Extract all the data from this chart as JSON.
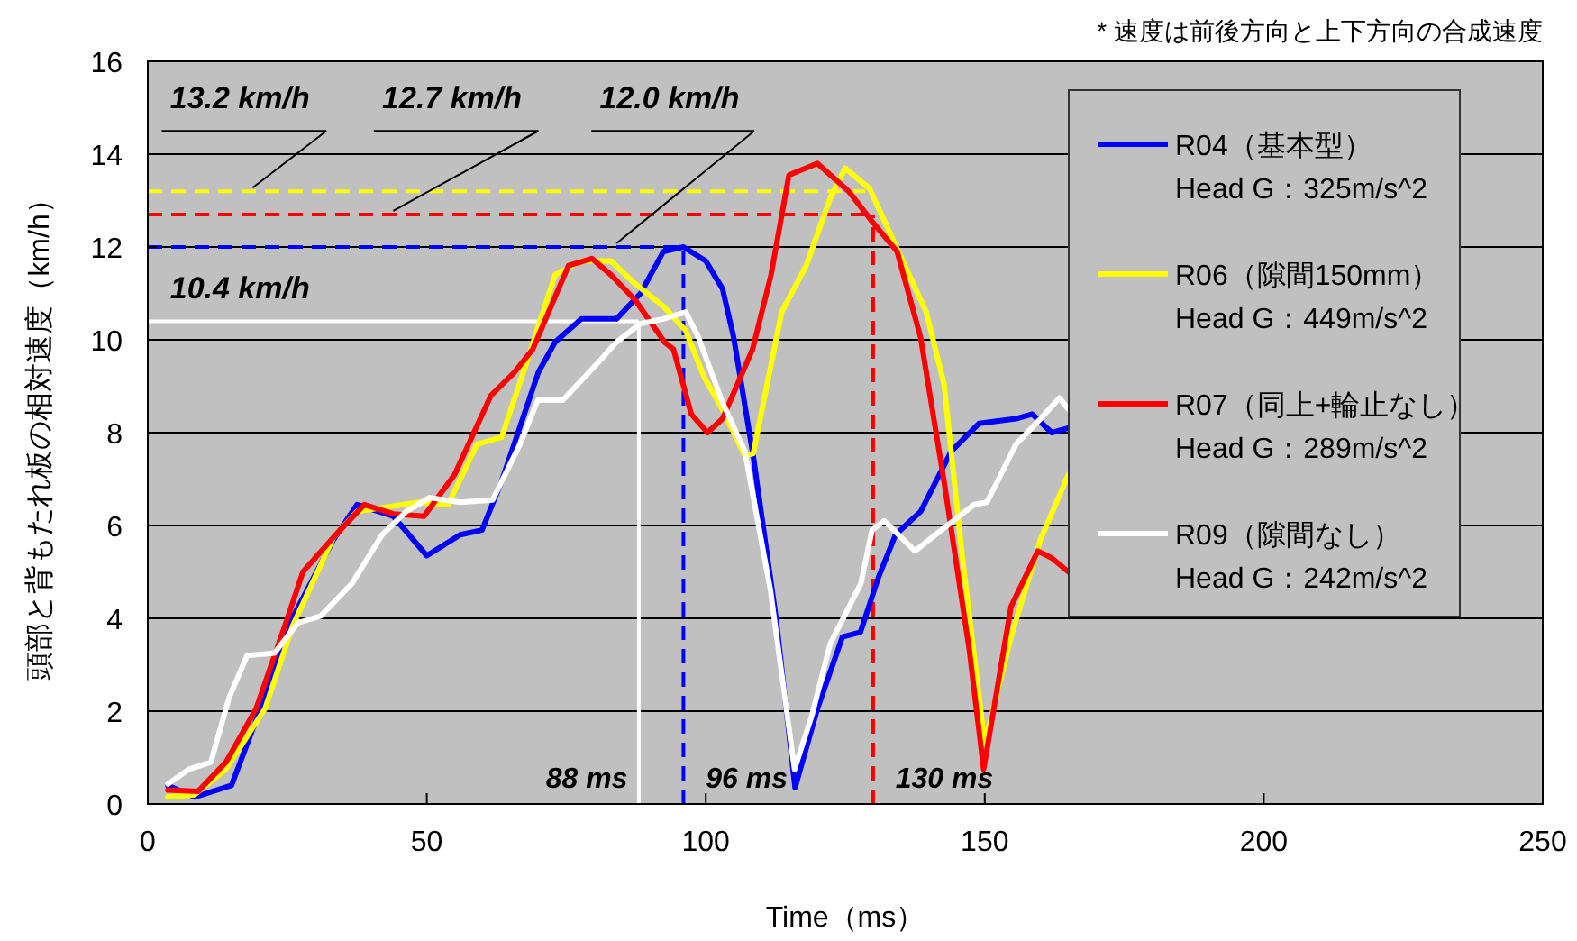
{
  "chart_data": {
    "type": "line",
    "xlabel": "Time（ms）",
    "ylabel": "頭部と背もたれ板の相対速度（km/h）",
    "xlim": [
      0,
      250
    ],
    "xticks": [
      0,
      50,
      100,
      150,
      200,
      250
    ],
    "ylim": [
      0,
      16
    ],
    "yticks": [
      0,
      2,
      4,
      6,
      8,
      10,
      12,
      14,
      16
    ],
    "grid": "y",
    "legend": "top right",
    "line_style": "solid",
    "marker": "none",
    "annotations": [
      "* 速度は前後方向と上下方向の合成速度"
    ],
    "ref_lines": [
      {
        "axis": "y",
        "value": 13.2,
        "label": "13.2 km/h",
        "color": "#ffff00",
        "line_style": "dashed"
      },
      {
        "axis": "y",
        "value": 12.7,
        "label": "12.7 km/h",
        "color": "#ff0000",
        "line_style": "dashed"
      },
      {
        "axis": "y",
        "value": 12.0,
        "label": "12.0 km/h",
        "color": "#0000ff",
        "line_style": "dashed"
      },
      {
        "axis": "y",
        "value": 10.4,
        "label": "10.4 km/h",
        "color": "#ffffff",
        "line_style": "solid"
      },
      {
        "axis": "x",
        "value": 88,
        "label": "88 ms",
        "color": "#ffffff",
        "line_style": "solid"
      },
      {
        "axis": "x",
        "value": 96,
        "label": "96 ms",
        "color": "#0000ff",
        "line_style": "dashed"
      },
      {
        "axis": "x",
        "value": 130,
        "label": "130 ms",
        "color": "#ff0000",
        "line_style": "dashed"
      }
    ],
    "series": [
      {
        "name": "R04（基本型）\nHead G：325m/s^2",
        "color": "#0000ff",
        "x": [
          3.6,
          8.4,
          15,
          19.4,
          25.9,
          33.3,
          37.5,
          44,
          50,
          56,
          59.9,
          63.4,
          70,
          73,
          77.7,
          84,
          88.3,
          92.4,
          96,
          100,
          103,
          105,
          108.5,
          112.6,
          116,
          120,
          124.5,
          127.7,
          131,
          134,
          138.5,
          144,
          149,
          155.6,
          158.5,
          162,
          165
        ],
        "values": [
          0.4,
          0.15,
          0.4,
          1.8,
          4.0,
          5.7,
          6.45,
          6.2,
          5.35,
          5.8,
          5.9,
          6.95,
          9.3,
          9.95,
          10.45,
          10.45,
          11.0,
          11.9,
          12.0,
          11.7,
          11.1,
          10.05,
          7.5,
          4.0,
          0.35,
          2.05,
          3.6,
          3.7,
          4.9,
          5.8,
          6.3,
          7.6,
          8.2,
          8.3,
          8.4,
          8.0,
          8.1
        ]
      },
      {
        "name": "R06（隙間150mm）\nHead G：449m/s^2",
        "color": "#ffff00",
        "x": [
          3.6,
          8.4,
          14,
          21,
          26,
          33.3,
          37.5,
          43,
          48.5,
          53.8,
          59,
          63.4,
          68,
          73,
          77.7,
          83,
          87.4,
          92.6,
          96.4,
          99.7,
          103,
          107,
          108.5,
          113.6,
          118,
          122.3,
          125,
          129.4,
          133,
          139.5,
          142.7,
          146,
          150,
          154.7,
          160,
          165
        ],
        "values": [
          0.15,
          0.2,
          0.75,
          2.05,
          3.85,
          5.75,
          6.3,
          6.4,
          6.5,
          6.45,
          7.75,
          7.9,
          9.55,
          11.4,
          11.7,
          11.7,
          11.2,
          10.7,
          10.2,
          9.2,
          8.5,
          7.5,
          7.55,
          10.6,
          11.6,
          13.05,
          13.7,
          13.25,
          12.3,
          10.6,
          9.05,
          5.3,
          1.3,
          3.6,
          5.7,
          7.1
        ]
      },
      {
        "name": "R07（同上+輪止なし）\nHead G：289m/s^2",
        "color": "#ff0000",
        "x": [
          3.6,
          9,
          14,
          19.4,
          24.6,
          27.8,
          33.3,
          38.8,
          44,
          49.5,
          55,
          61.5,
          65.7,
          69,
          75.4,
          79.6,
          83,
          87.4,
          92.6,
          94.2,
          97.4,
          100.3,
          103,
          108.4,
          111.7,
          114.9,
          120,
          125.6,
          129.8,
          134.3,
          138.5,
          142.7,
          147.2,
          149.8,
          154.7,
          159.5,
          162,
          165
        ],
        "values": [
          0.3,
          0.27,
          0.9,
          2.05,
          3.85,
          5.0,
          5.75,
          6.45,
          6.25,
          6.2,
          7.1,
          8.8,
          9.3,
          9.8,
          11.6,
          11.75,
          11.4,
          10.85,
          9.95,
          9.8,
          8.4,
          8.0,
          8.3,
          9.8,
          11.4,
          13.55,
          13.8,
          13.2,
          12.55,
          11.9,
          10.05,
          6.95,
          3.35,
          0.75,
          4.25,
          5.45,
          5.3,
          5.0
        ]
      },
      {
        "name": "R09（隙間なし）\nHead G：242m/s^2",
        "color": "#ffffff",
        "x": [
          3.6,
          7.4,
          11.3,
          14.6,
          17.8,
          22.7,
          26.9,
          31,
          36.6,
          42,
          46.3,
          50.5,
          56,
          61.8,
          66.7,
          69.9,
          74.4,
          81,
          84,
          88.3,
          92.4,
          96.4,
          98.7,
          103,
          107,
          111.6,
          115.9,
          119,
          122.3,
          127.8,
          129.8,
          132,
          137.5,
          141.7,
          148.1,
          150.4,
          155.6,
          160,
          163.4,
          165
        ],
        "values": [
          0.43,
          0.75,
          0.9,
          2.3,
          3.2,
          3.25,
          3.9,
          4.05,
          4.75,
          5.8,
          6.3,
          6.6,
          6.5,
          6.55,
          7.75,
          8.7,
          8.7,
          9.55,
          9.95,
          10.35,
          10.45,
          10.6,
          10.05,
          8.65,
          7.6,
          4.6,
          0.75,
          1.9,
          3.45,
          4.75,
          5.9,
          6.1,
          5.45,
          5.85,
          6.45,
          6.5,
          7.75,
          8.3,
          8.75,
          8.5
        ]
      }
    ]
  }
}
